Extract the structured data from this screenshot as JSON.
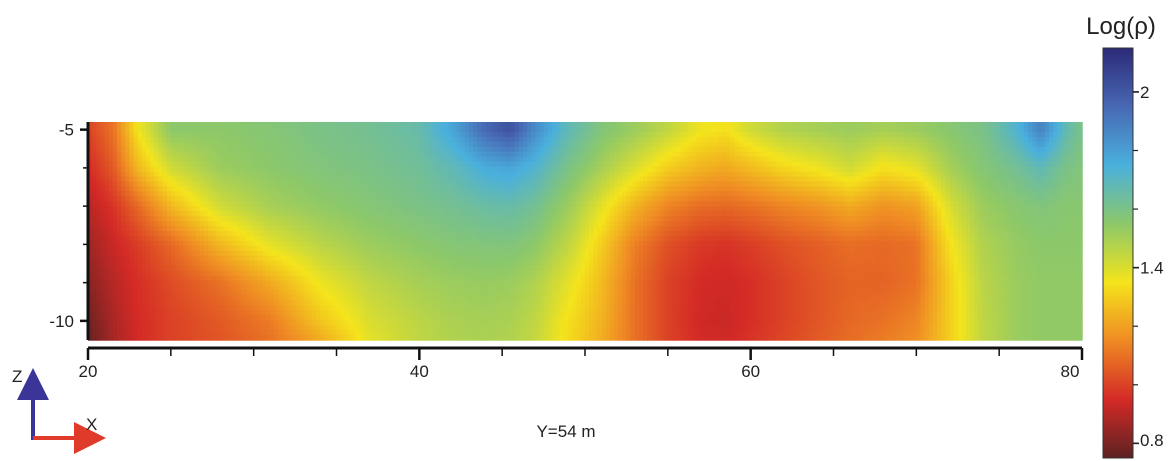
{
  "chart_data": {
    "type": "heatmap",
    "title": "",
    "xlabel": "",
    "ylabel": "",
    "x_ticks": [
      20,
      40,
      60,
      80
    ],
    "x_minor_step": 5,
    "xlim": [
      20,
      80
    ],
    "y_ticks": [
      -5,
      -10
    ],
    "y_minor_ticks": [
      -5,
      -6,
      -7,
      -8,
      -9,
      -10
    ],
    "ylim": [
      -10.5,
      -4.8
    ],
    "section_label": "Y=54 m",
    "colorbar": {
      "title": "Log(ρ)",
      "tick_labels": [
        "2",
        "1.4",
        "0.8"
      ],
      "tick_values": [
        2.0,
        1.4,
        0.8
      ],
      "range": [
        0.75,
        2.15
      ],
      "colors": [
        "#5c2222",
        "#d42a26",
        "#ef8a24",
        "#f4e41c",
        "#8cc86a",
        "#4ab0dd",
        "#4868b3",
        "#2b2a78"
      ]
    },
    "orientation": {
      "vertical": "Z",
      "horizontal": "X",
      "vertical_color": "#3a3596",
      "horizontal_color": "#e03a2a"
    },
    "grid": false,
    "series": [
      {
        "name": "",
        "z": -5.0,
        "x": [
          20,
          21.5,
          23,
          25,
          28,
          31,
          34,
          37,
          40,
          42,
          44,
          45.5,
          47,
          49,
          51,
          53,
          55,
          57,
          58.5,
          60,
          62,
          64,
          66,
          68,
          70,
          72,
          74,
          76,
          77.5,
          79,
          80
        ],
        "v": [
          1.0,
          1.1,
          1.35,
          1.55,
          1.55,
          1.57,
          1.6,
          1.62,
          1.66,
          1.78,
          1.95,
          2.02,
          1.85,
          1.68,
          1.58,
          1.52,
          1.45,
          1.36,
          1.34,
          1.42,
          1.48,
          1.5,
          1.52,
          1.5,
          1.52,
          1.56,
          1.6,
          1.72,
          1.88,
          1.68,
          1.6
        ]
      },
      {
        "name": "",
        "z": -6.0,
        "x": [
          20,
          21.5,
          23,
          25,
          28,
          31,
          34,
          37,
          40,
          42,
          44,
          45.5,
          47,
          49,
          51,
          53,
          55,
          57,
          58.5,
          60,
          62,
          64,
          66,
          68,
          70,
          72,
          74,
          76,
          77.5,
          79,
          80
        ],
        "v": [
          0.95,
          1.05,
          1.25,
          1.42,
          1.52,
          1.55,
          1.58,
          1.6,
          1.63,
          1.68,
          1.76,
          1.78,
          1.72,
          1.6,
          1.5,
          1.4,
          1.3,
          1.24,
          1.22,
          1.26,
          1.32,
          1.36,
          1.42,
          1.34,
          1.38,
          1.5,
          1.57,
          1.62,
          1.68,
          1.6,
          1.58
        ]
      },
      {
        "name": "",
        "z": -7.0,
        "x": [
          20,
          21.5,
          23,
          25,
          28,
          31,
          34,
          37,
          40,
          42,
          44,
          45.5,
          47,
          49,
          51,
          53,
          55,
          57,
          58.5,
          60,
          62,
          64,
          66,
          68,
          70,
          72,
          74,
          76,
          77.5,
          79,
          80
        ],
        "v": [
          0.9,
          0.97,
          1.08,
          1.25,
          1.42,
          1.5,
          1.54,
          1.57,
          1.6,
          1.62,
          1.65,
          1.66,
          1.62,
          1.52,
          1.38,
          1.24,
          1.14,
          1.09,
          1.08,
          1.1,
          1.14,
          1.17,
          1.22,
          1.17,
          1.2,
          1.4,
          1.52,
          1.56,
          1.58,
          1.56,
          1.56
        ]
      },
      {
        "name": "",
        "z": -8.0,
        "x": [
          20,
          21.5,
          23,
          25,
          28,
          31,
          34,
          37,
          40,
          42,
          44,
          45.5,
          47,
          49,
          51,
          53,
          55,
          57,
          58.5,
          60,
          62,
          64,
          66,
          68,
          70,
          72,
          74,
          76,
          77.5,
          79,
          80
        ],
        "v": [
          0.86,
          0.93,
          0.99,
          1.08,
          1.25,
          1.38,
          1.46,
          1.52,
          1.55,
          1.57,
          1.58,
          1.58,
          1.55,
          1.45,
          1.3,
          1.13,
          1.03,
          0.98,
          0.97,
          0.99,
          1.03,
          1.06,
          1.09,
          1.08,
          1.1,
          1.34,
          1.48,
          1.53,
          1.55,
          1.55,
          1.55
        ]
      },
      {
        "name": "",
        "z": -9.0,
        "x": [
          20,
          21.5,
          23,
          25,
          28,
          31,
          34,
          37,
          40,
          42,
          44,
          45.5,
          47,
          49,
          51,
          53,
          55,
          57,
          58.5,
          60,
          62,
          64,
          66,
          68,
          70,
          72,
          74,
          76,
          77.5,
          79,
          80
        ],
        "v": [
          0.82,
          0.9,
          0.96,
          1.02,
          1.1,
          1.22,
          1.36,
          1.45,
          1.5,
          1.52,
          1.53,
          1.52,
          1.48,
          1.38,
          1.26,
          1.1,
          1.0,
          0.95,
          0.94,
          0.96,
          1.0,
          1.04,
          1.07,
          1.07,
          1.1,
          1.3,
          1.46,
          1.52,
          1.54,
          1.54,
          1.54
        ]
      },
      {
        "name": "",
        "z": -10.0,
        "x": [
          20,
          21.5,
          23,
          25,
          28,
          31,
          34,
          37,
          40,
          42,
          44,
          45.5,
          47,
          49,
          51,
          53,
          55,
          57,
          58.5,
          60,
          62,
          64,
          66,
          68,
          70,
          72,
          74,
          76,
          77.5,
          79,
          80
        ],
        "v": [
          0.78,
          0.88,
          0.95,
          1.0,
          1.05,
          1.12,
          1.28,
          1.4,
          1.46,
          1.49,
          1.5,
          1.49,
          1.45,
          1.34,
          1.24,
          1.1,
          1.0,
          0.94,
          0.93,
          0.96,
          1.0,
          1.04,
          1.08,
          1.1,
          1.14,
          1.3,
          1.45,
          1.52,
          1.54,
          1.54,
          1.54
        ]
      },
      {
        "name": "",
        "z": -10.5,
        "x": [
          20,
          21.5,
          23,
          25,
          28,
          31,
          34,
          37,
          40,
          42,
          44,
          45.5,
          47,
          49,
          51,
          53,
          55,
          57,
          58.5,
          60,
          62,
          64,
          66,
          68,
          70,
          72,
          74,
          76,
          77.5,
          79,
          80
        ],
        "v": [
          0.76,
          0.87,
          0.95,
          1.0,
          1.04,
          1.1,
          1.22,
          1.38,
          1.45,
          1.48,
          1.49,
          1.48,
          1.44,
          1.33,
          1.23,
          1.1,
          1.0,
          0.95,
          0.94,
          0.97,
          1.01,
          1.05,
          1.09,
          1.12,
          1.16,
          1.3,
          1.45,
          1.52,
          1.54,
          1.54,
          1.54
        ]
      }
    ]
  }
}
